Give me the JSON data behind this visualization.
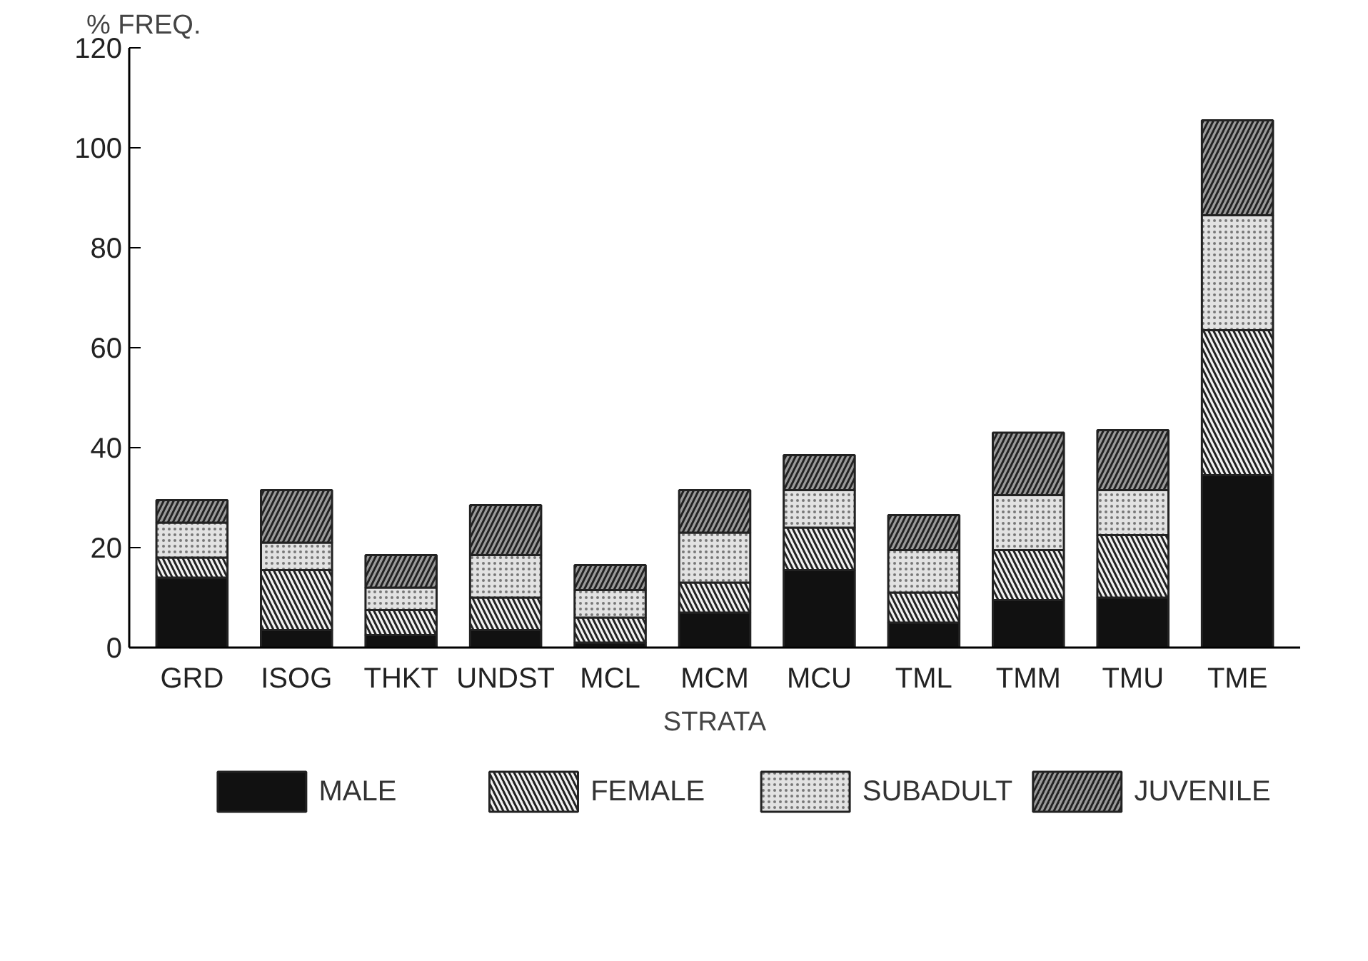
{
  "chart_data": {
    "type": "bar",
    "stacked": true,
    "xlabel": "STRATA",
    "ylabel": "% FREQ.",
    "categories": [
      "GRD",
      "ISOG",
      "THKT",
      "UNDST",
      "MCL",
      "MCM",
      "MCU",
      "TML",
      "TMM",
      "TMU",
      "TME"
    ],
    "series": [
      {
        "name": "MALE",
        "color": "#111111",
        "values": [
          14,
          3.5,
          2.5,
          3.5,
          1,
          7,
          15.5,
          5,
          9.5,
          10,
          34.5
        ]
      },
      {
        "name": "FEMALE",
        "color": "#f2f2f2",
        "values": [
          4,
          12,
          5,
          6.5,
          5,
          6,
          8.5,
          6,
          10,
          12.5,
          29
        ]
      },
      {
        "name": "SUBADULT",
        "color": "#e2e2e2",
        "values": [
          7,
          5.5,
          4.5,
          8.5,
          5.5,
          10,
          7.5,
          8.5,
          11,
          9,
          23
        ]
      },
      {
        "name": "JUVENILE",
        "color": "#9a9a9a",
        "values": [
          4.5,
          10.5,
          6.5,
          10,
          5,
          8.5,
          7,
          7,
          12.5,
          12,
          19
        ]
      }
    ],
    "ylim": [
      0,
      120
    ],
    "yticks": [
      0,
      20,
      40,
      60,
      80,
      100,
      120
    ],
    "grid": false,
    "legend": "bottom"
  }
}
